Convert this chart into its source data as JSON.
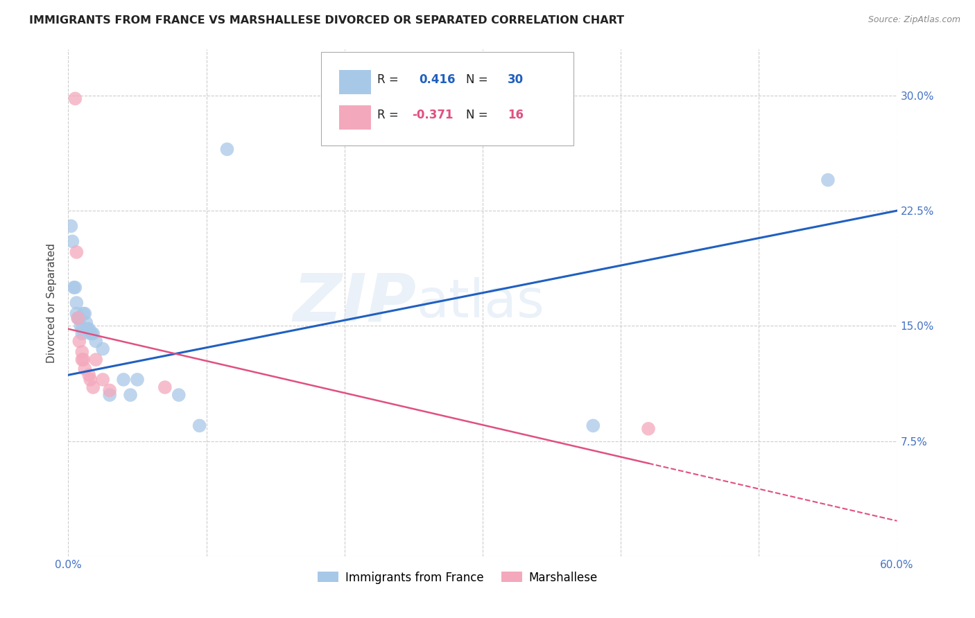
{
  "title": "IMMIGRANTS FROM FRANCE VS MARSHALLESE DIVORCED OR SEPARATED CORRELATION CHART",
  "source": "Source: ZipAtlas.com",
  "xlabel_blue": "Immigrants from France",
  "xlabel_pink": "Marshallese",
  "ylabel": "Divorced or Separated",
  "xmin": 0.0,
  "xmax": 0.6,
  "ymin": 0.0,
  "ymax": 0.33,
  "yticks": [
    0.0,
    0.075,
    0.15,
    0.225,
    0.3
  ],
  "ytick_labels": [
    "",
    "7.5%",
    "15.0%",
    "22.5%",
    "30.0%"
  ],
  "xticks": [
    0.0,
    0.1,
    0.2,
    0.3,
    0.4,
    0.5,
    0.6
  ],
  "xtick_labels": [
    "0.0%",
    "",
    "",
    "",
    "",
    "",
    "60.0%"
  ],
  "blue_R": 0.416,
  "blue_N": 30,
  "pink_R": -0.371,
  "pink_N": 16,
  "blue_color": "#a8c8e8",
  "pink_color": "#f4a8bc",
  "blue_line_color": "#2060c0",
  "pink_line_color": "#e05080",
  "blue_scatter": [
    [
      0.002,
      0.215
    ],
    [
      0.003,
      0.205
    ],
    [
      0.004,
      0.175
    ],
    [
      0.005,
      0.175
    ],
    [
      0.006,
      0.165
    ],
    [
      0.006,
      0.158
    ],
    [
      0.007,
      0.155
    ],
    [
      0.008,
      0.155
    ],
    [
      0.009,
      0.15
    ],
    [
      0.01,
      0.148
    ],
    [
      0.01,
      0.145
    ],
    [
      0.011,
      0.158
    ],
    [
      0.012,
      0.158
    ],
    [
      0.013,
      0.152
    ],
    [
      0.014,
      0.148
    ],
    [
      0.015,
      0.148
    ],
    [
      0.016,
      0.145
    ],
    [
      0.017,
      0.145
    ],
    [
      0.018,
      0.145
    ],
    [
      0.02,
      0.14
    ],
    [
      0.025,
      0.135
    ],
    [
      0.03,
      0.105
    ],
    [
      0.04,
      0.115
    ],
    [
      0.045,
      0.105
    ],
    [
      0.05,
      0.115
    ],
    [
      0.08,
      0.105
    ],
    [
      0.095,
      0.085
    ],
    [
      0.115,
      0.265
    ],
    [
      0.38,
      0.085
    ],
    [
      0.55,
      0.245
    ]
  ],
  "pink_scatter": [
    [
      0.005,
      0.298
    ],
    [
      0.006,
      0.198
    ],
    [
      0.007,
      0.155
    ],
    [
      0.008,
      0.14
    ],
    [
      0.01,
      0.133
    ],
    [
      0.01,
      0.128
    ],
    [
      0.011,
      0.128
    ],
    [
      0.012,
      0.122
    ],
    [
      0.015,
      0.118
    ],
    [
      0.016,
      0.115
    ],
    [
      0.018,
      0.11
    ],
    [
      0.02,
      0.128
    ],
    [
      0.025,
      0.115
    ],
    [
      0.03,
      0.108
    ],
    [
      0.07,
      0.11
    ],
    [
      0.42,
      0.083
    ]
  ],
  "blue_line_x": [
    0.0,
    0.6
  ],
  "blue_line_y": [
    0.118,
    0.225
  ],
  "pink_line_x": [
    0.0,
    0.6
  ],
  "pink_line_y": [
    0.148,
    0.023
  ],
  "pink_line_solid_end": 0.42,
  "watermark_zip": "ZIP",
  "watermark_atlas": "atlas",
  "background_color": "#ffffff",
  "grid_color": "#cccccc",
  "tick_color": "#4472c4",
  "title_color": "#222222",
  "source_color": "#888888"
}
